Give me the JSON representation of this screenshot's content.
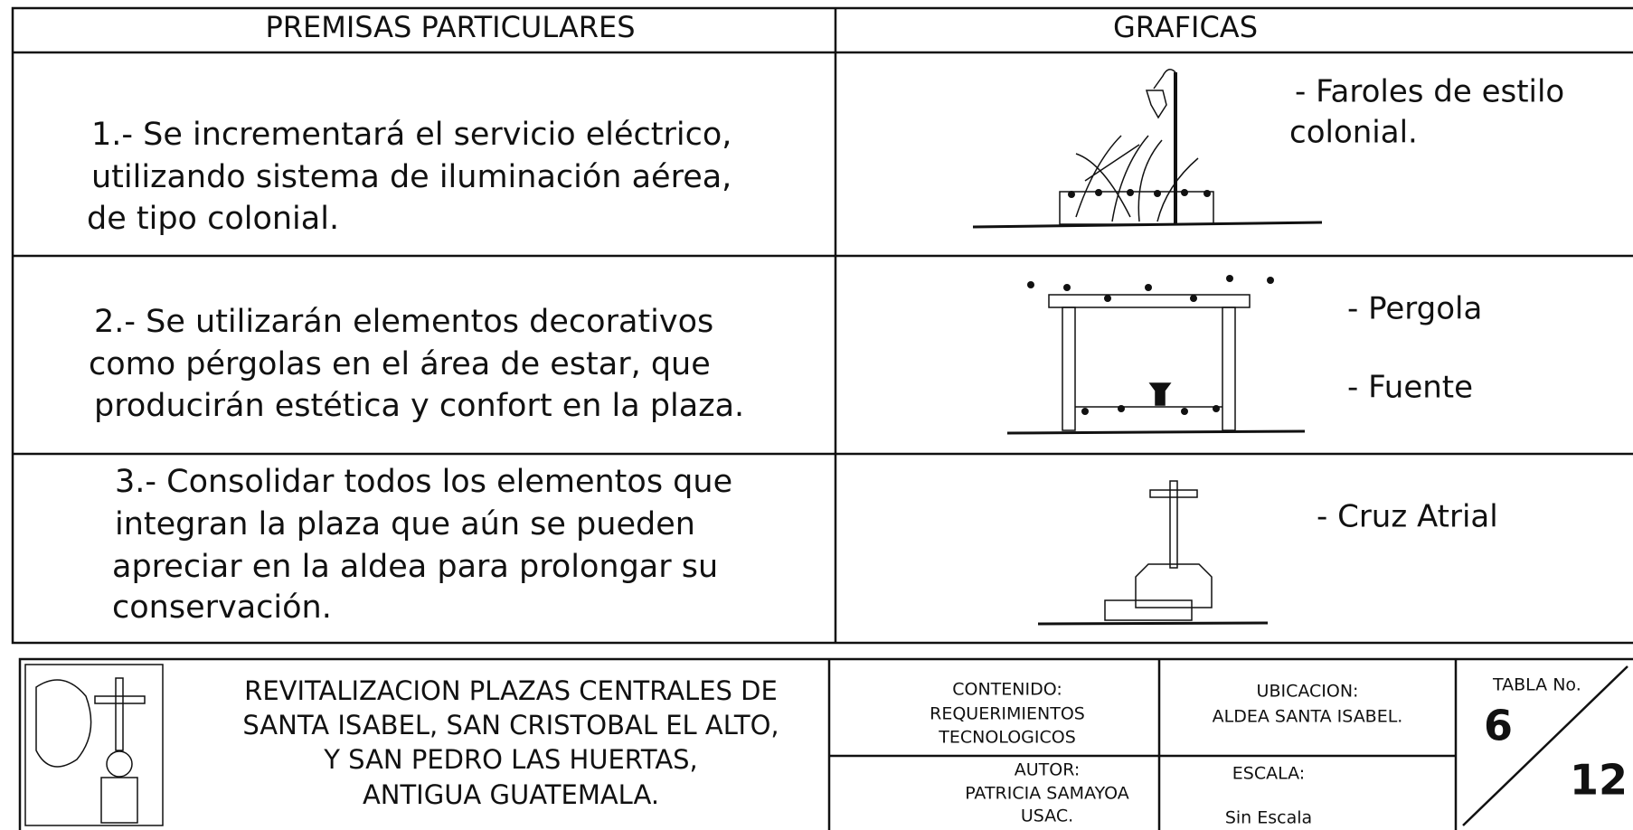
{
  "table": {
    "headers": [
      "PREMISAS PARTICULARES",
      "GRAFICAS"
    ],
    "rows": [
      {
        "premise": [
          "1.-  Se incrementará el servicio eléctrico,",
          "utilizando sistema de iluminación aérea,",
          "de tipo colonial."
        ],
        "labels": [
          "- Faroles de estilo",
          "colonial."
        ]
      },
      {
        "premise": [
          "2.-  Se utilizarán elementos decorativos",
          "como pérgolas en el área de estar, que",
          "producirán estética y confort en la plaza."
        ],
        "labels": [
          "-  Pergola",
          "- Fuente"
        ]
      },
      {
        "premise": [
          "3.-  Consolidar todos los elementos que",
          "integran la plaza que aún se pueden",
          "apreciar en la aldea para prolongar su",
          "conservación."
        ],
        "labels": [
          "-  Cruz Atrial"
        ]
      }
    ]
  },
  "title_block": {
    "project": [
      "REVITALIZACION PLAZAS CENTRALES DE",
      "SANTA ISABEL, SAN CRISTOBAL EL ALTO,",
      "Y SAN PEDRO LAS HUERTAS,",
      "ANTIGUA GUATEMALA."
    ],
    "contenido": [
      "CONTENIDO:",
      "REQUERIMIENTOS",
      "TECNOLOGICOS"
    ],
    "ubicacion": [
      "UBICACION:",
      "ALDEA SANTA ISABEL."
    ],
    "autor": [
      "AUTOR:",
      "PATRICIA SAMAYOA",
      "USAC."
    ],
    "escala": [
      "ESCALA:",
      "Sin Escala"
    ],
    "tabla_label": "TABLA No.",
    "tabla_no": 6,
    "total": 12
  }
}
